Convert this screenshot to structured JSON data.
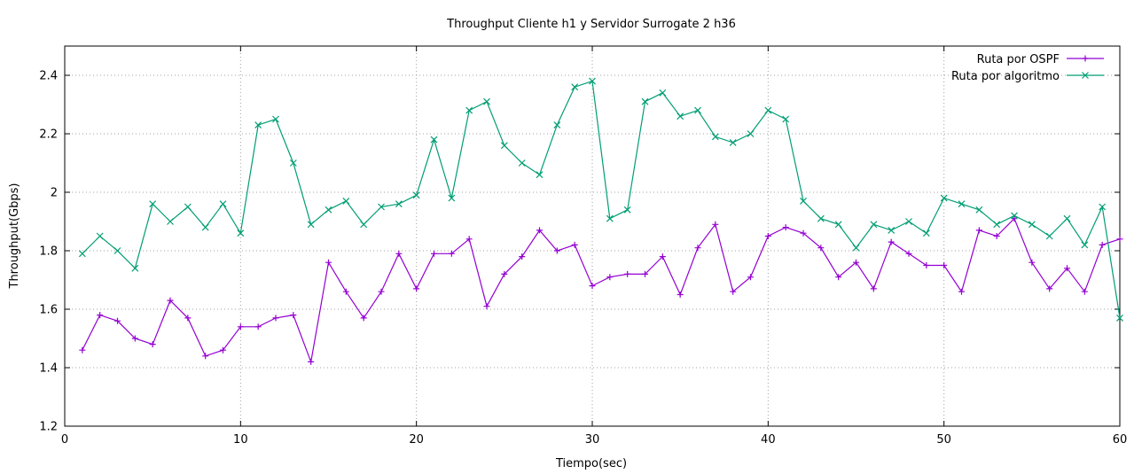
{
  "chart_data": {
    "type": "line",
    "title": "Throughput Cliente h1 y Servidor Surrogate 2 h36",
    "xlabel": "Tiempo(sec)",
    "ylabel": "Throughput(Gbps)",
    "xlim": [
      0,
      60
    ],
    "ylim": [
      1.2,
      2.5
    ],
    "xticks": [
      0,
      10,
      20,
      30,
      40,
      50,
      60
    ],
    "yticks": [
      1.2,
      1.4,
      1.6,
      1.8,
      2.0,
      2.2,
      2.4
    ],
    "xtick_labels": [
      "0",
      "10",
      "20",
      "30",
      "40",
      "50",
      "60"
    ],
    "ytick_labels": [
      "1.2",
      "1.4",
      "1.6",
      "1.8",
      "2",
      "2.2",
      "2.4"
    ],
    "grid": true,
    "legend_position": "top-right",
    "x": [
      1,
      2,
      3,
      4,
      5,
      6,
      7,
      8,
      9,
      10,
      11,
      12,
      13,
      14,
      15,
      16,
      17,
      18,
      19,
      20,
      21,
      22,
      23,
      24,
      25,
      26,
      27,
      28,
      29,
      30,
      31,
      32,
      33,
      34,
      35,
      36,
      37,
      38,
      39,
      40,
      41,
      42,
      43,
      44,
      45,
      46,
      47,
      48,
      49,
      50,
      51,
      52,
      53,
      54,
      55,
      56,
      57,
      58,
      59,
      60
    ],
    "series": [
      {
        "name": "Ruta por OSPF",
        "color": "#9400d3",
        "marker": "plus",
        "values": [
          1.46,
          1.58,
          1.56,
          1.5,
          1.48,
          1.63,
          1.57,
          1.44,
          1.46,
          1.54,
          1.54,
          1.57,
          1.58,
          1.42,
          1.76,
          1.66,
          1.57,
          1.66,
          1.79,
          1.67,
          1.79,
          1.79,
          1.84,
          1.61,
          1.72,
          1.78,
          1.87,
          1.8,
          1.82,
          1.68,
          1.71,
          1.72,
          1.72,
          1.78,
          1.65,
          1.81,
          1.89,
          1.66,
          1.71,
          1.85,
          1.88,
          1.86,
          1.81,
          1.71,
          1.76,
          1.67,
          1.83,
          1.79,
          1.75,
          1.75,
          1.66,
          1.87,
          1.85,
          1.91,
          1.76,
          1.67,
          1.74,
          1.66,
          1.82,
          1.84
        ]
      },
      {
        "name": "Ruta por algoritmo",
        "color": "#009e73",
        "marker": "cross",
        "values": [
          1.79,
          1.85,
          1.8,
          1.74,
          1.96,
          1.9,
          1.95,
          1.88,
          1.96,
          1.86,
          2.23,
          2.25,
          2.1,
          1.89,
          1.94,
          1.97,
          1.89,
          1.95,
          1.96,
          1.99,
          2.18,
          1.98,
          2.28,
          2.31,
          2.16,
          2.1,
          2.06,
          2.23,
          2.36,
          2.38,
          1.91,
          1.94,
          2.31,
          2.34,
          2.26,
          2.28,
          2.19,
          2.17,
          2.2,
          2.28,
          2.25,
          1.97,
          1.91,
          1.89,
          1.81,
          1.89,
          1.87,
          1.9,
          1.86,
          1.98,
          1.96,
          1.94,
          1.89,
          1.92,
          1.89,
          1.85,
          1.91,
          1.82,
          1.95,
          1.57
        ]
      }
    ]
  }
}
